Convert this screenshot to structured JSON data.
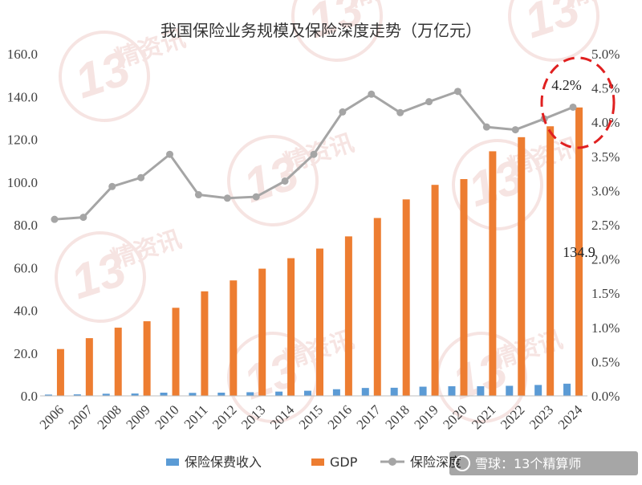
{
  "chart_data": {
    "type": "bar",
    "title": "我国保险业务规模及保险深度走势（万亿元）",
    "categories": [
      "2006",
      "2007",
      "2008",
      "2009",
      "2010",
      "2011",
      "2012",
      "2013",
      "2014",
      "2015",
      "2016",
      "2017",
      "2018",
      "2019",
      "2020",
      "2021",
      "2022",
      "2023",
      "2024"
    ],
    "series": [
      {
        "name": "保险保费收入",
        "type": "bar",
        "axis": "left",
        "color": "#5B9BD5",
        "values": [
          0.6,
          0.7,
          1.0,
          1.1,
          1.5,
          1.4,
          1.5,
          1.7,
          2.0,
          2.4,
          3.1,
          3.7,
          3.8,
          4.3,
          4.5,
          4.5,
          4.7,
          5.1,
          5.7
        ]
      },
      {
        "name": "GDP",
        "type": "bar",
        "axis": "left",
        "color": "#ED7D31",
        "values": [
          21.9,
          27.0,
          31.9,
          34.9,
          41.2,
          48.9,
          54.0,
          59.5,
          64.4,
          68.9,
          74.6,
          83.2,
          91.9,
          98.7,
          101.4,
          114.4,
          121.0,
          126.1,
          134.9
        ]
      },
      {
        "name": "保险深度",
        "type": "line",
        "axis": "right",
        "color": "#A5A5A5",
        "values": [
          2.58,
          2.61,
          3.06,
          3.19,
          3.53,
          2.94,
          2.89,
          2.91,
          3.14,
          3.53,
          4.15,
          4.41,
          4.14,
          4.3,
          4.45,
          3.93,
          3.89,
          4.05,
          4.22
        ]
      }
    ],
    "ylim": [
      0,
      160
    ],
    "yticks": [
      "0.0",
      "20.0",
      "40.0",
      "60.0",
      "80.0",
      "100.0",
      "120.0",
      "140.0",
      "160.0"
    ],
    "y2lim": [
      0,
      5
    ],
    "y2ticks": [
      "0.0%",
      "0.5%",
      "1.0%",
      "1.5%",
      "2.0%",
      "2.5%",
      "3.0%",
      "3.5%",
      "4.0%",
      "4.5%",
      "5.0%"
    ],
    "legend_position": "bottom",
    "annotations": [
      {
        "text": "4.2%",
        "target": "保险深度 2024"
      },
      {
        "text": "134.9",
        "target": "GDP 2024"
      }
    ],
    "highlight": {
      "shape": "dashed-ellipse",
      "color": "#E02020",
      "target": "保险深度 2024"
    }
  },
  "watermark": {
    "text": "13精资讯",
    "badge_text": "13",
    "footer": "雪球：13个精算师"
  }
}
